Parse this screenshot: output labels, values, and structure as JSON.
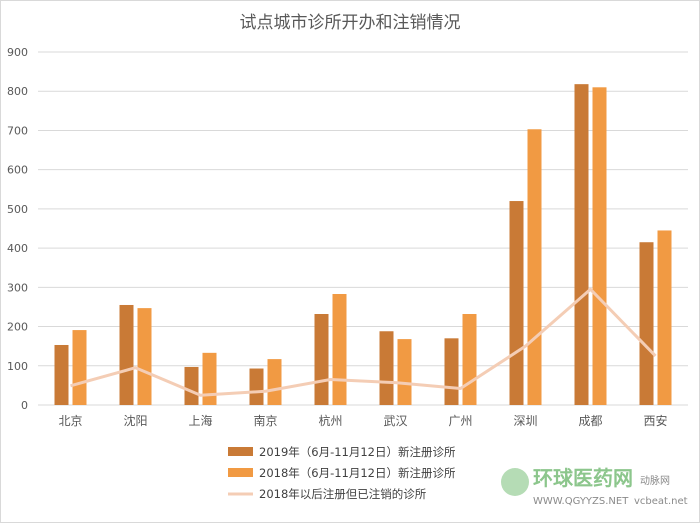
{
  "chart_data": {
    "type": "bar",
    "title": "试点城市诊所开办和注销情况",
    "categories": [
      "北京",
      "沈阳",
      "上海",
      "南京",
      "杭州",
      "武汉",
      "广州",
      "深圳",
      "成都",
      "西安"
    ],
    "ylim": [
      0,
      900
    ],
    "yticks": [
      0,
      100,
      200,
      300,
      400,
      500,
      600,
      700,
      800,
      900
    ],
    "grid": true,
    "legend_position": "bottom",
    "series": [
      {
        "name": "2019年（6月-11月12日）新注册诊所",
        "type": "bar",
        "color": "#c97a36",
        "values": [
          153,
          255,
          97,
          93,
          232,
          188,
          170,
          520,
          818,
          415
        ]
      },
      {
        "name": "2018年（6月-11月12日）新注册诊所",
        "type": "bar",
        "color": "#f19a43",
        "values": [
          191,
          247,
          133,
          117,
          283,
          168,
          232,
          703,
          810,
          445
        ]
      },
      {
        "name": "2018年以后注册但已注销的诊所",
        "type": "line",
        "color": "#f4cdb5",
        "values": [
          49,
          95,
          25,
          35,
          65,
          57,
          42,
          150,
          295,
          125
        ]
      }
    ]
  },
  "watermark": {
    "logo_text": "环球医药网",
    "url_text": "WWW.QGYYZS.NET",
    "secondary_text": "动脉网",
    "secondary_url": "vcbeat.net"
  }
}
